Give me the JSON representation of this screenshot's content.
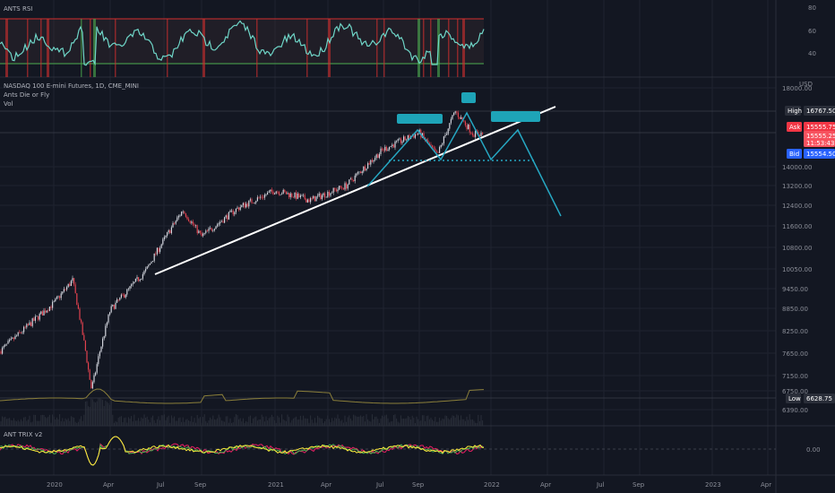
{
  "colors": {
    "background": "#131722",
    "grid": "#1f2330",
    "rsi_line": "#6fd6c8",
    "rsi_band": "#d32f2f",
    "rsi_low_band": "#4caf50",
    "candle_up": "#d1d4dc",
    "candle_down": "#e0424f",
    "trendline": "#ffffff",
    "pattern": "#26a7c2",
    "vol_line": "#8b7f3a",
    "trix_a": "#ffeb3b",
    "trix_b": "#4caf50",
    "trix_c": "#e91e63",
    "tag_high": "#2a2e39",
    "tag_ask": "#f23645",
    "tag_bid": "#2962ff",
    "tag_low": "#2a2e39"
  },
  "rsi_panel": {
    "title": "ANTS RSI",
    "ticks": [
      "80",
      "60",
      "40"
    ]
  },
  "main_panel": {
    "legend": [
      "NASDAQ 100 E-mini Futures, 1D, CME_MINI",
      "Ants Die or Fly",
      "Vol"
    ],
    "currency": "USD",
    "price_ticks": [
      "18000.00",
      "14000.00",
      "13200.00",
      "12400.00",
      "11600.00",
      "10800.00",
      "10050.00",
      "9450.00",
      "8850.00",
      "8250.00",
      "7650.00",
      "7150.00",
      "6750.00",
      "6390.00"
    ],
    "tags": {
      "high_label": "High",
      "high_value": "16767.50",
      "ask_label": "Ask",
      "ask_value": "15555.75",
      "last_value": "15555.25",
      "countdown": "11:53:43",
      "bid_label": "Bid",
      "bid_value": "15554.50",
      "low_label": "Low",
      "low_value": "6628.75"
    }
  },
  "trix_panel": {
    "title": "ANT TRIX v2",
    "zero_tick": "0.00"
  },
  "time_axis": [
    "2020",
    "Apr",
    "Jul",
    "Sep",
    "2021",
    "Apr",
    "Jul",
    "Sep",
    "2022",
    "Apr",
    "Jul",
    "Sep",
    "2023",
    "Apr"
  ],
  "chart_data": {
    "type": "candlestick",
    "symbol": "NASDAQ 100 E-mini Futures, 1D, CME_MINI",
    "timeframe": "1D",
    "approx_close_path": [
      {
        "x": "2019-10",
        "y": 7700
      },
      {
        "x": "2020-01",
        "y": 9000
      },
      {
        "x": "2020-02",
        "y": 9700
      },
      {
        "x": "2020-03",
        "y": 6800
      },
      {
        "x": "2020-04",
        "y": 8800
      },
      {
        "x": "2020-06",
        "y": 10000
      },
      {
        "x": "2020-08",
        "y": 12200
      },
      {
        "x": "2020-09",
        "y": 11200
      },
      {
        "x": "2020-11",
        "y": 12300
      },
      {
        "x": "2021-01",
        "y": 13000
      },
      {
        "x": "2021-03",
        "y": 12600
      },
      {
        "x": "2021-05",
        "y": 13200
      },
      {
        "x": "2021-07",
        "y": 14800
      },
      {
        "x": "2021-09",
        "y": 15600
      },
      {
        "x": "2021-10",
        "y": 14500
      },
      {
        "x": "2021-11",
        "y": 16700
      },
      {
        "x": "2021-12",
        "y": 15555
      }
    ],
    "high": 16767.5,
    "low": 6628.75,
    "last": 15555.25
  }
}
